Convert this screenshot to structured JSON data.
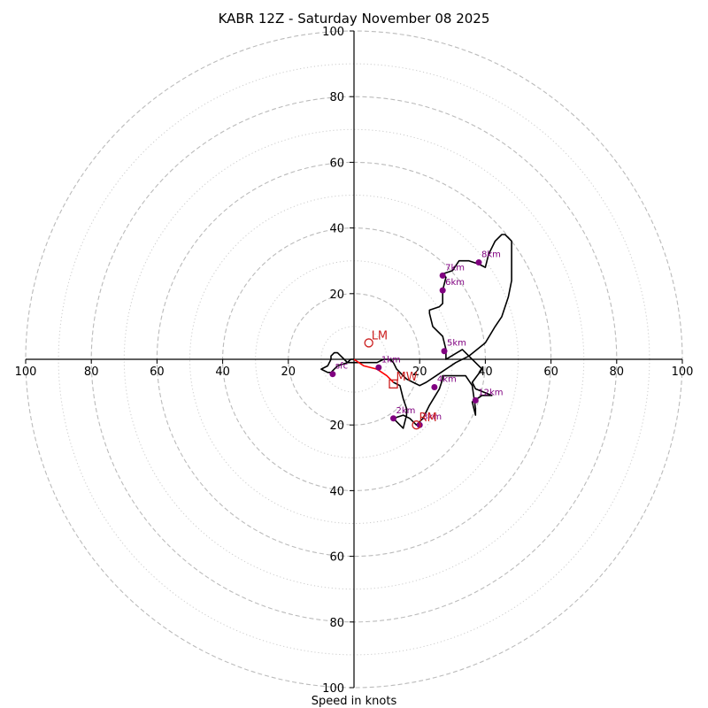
{
  "chart_data": {
    "type": "hodograph",
    "title": "KABR 12Z - Saturday November 08 2025",
    "xlabel": "Speed in knots",
    "speed_range": [
      0,
      100
    ],
    "ring_major": [
      20,
      40,
      60,
      80,
      100
    ],
    "ring_minor": [
      10,
      30,
      50,
      70,
      90
    ],
    "tick_labels": {
      "left": [
        "100",
        "80",
        "60",
        "40",
        "20"
      ],
      "right": [
        "20",
        "40",
        "60",
        "80",
        "100"
      ],
      "up": [
        "100",
        "80",
        "60",
        "40",
        "20"
      ],
      "down": [
        "20",
        "40",
        "60",
        "80",
        "100"
      ]
    },
    "low_level_trace": {
      "color": "#ff0000",
      "points": [
        [
          0,
          0
        ],
        [
          3,
          -2
        ],
        [
          7,
          -3
        ],
        [
          10,
          -5
        ],
        [
          12,
          -7
        ]
      ]
    },
    "trace": {
      "color": "#000000",
      "points": [
        [
          12,
          -7
        ],
        [
          14,
          -8
        ],
        [
          15,
          -12
        ],
        [
          16,
          -15
        ],
        [
          16,
          -17
        ],
        [
          15,
          -21
        ],
        [
          12,
          -18
        ],
        [
          15,
          -17
        ],
        [
          17,
          -18
        ],
        [
          19,
          -20
        ],
        [
          21,
          -18
        ],
        [
          23,
          -14
        ],
        [
          26,
          -9
        ],
        [
          27,
          -6
        ],
        [
          27,
          -5
        ],
        [
          34,
          -5
        ],
        [
          36,
          -8
        ],
        [
          37,
          -15
        ],
        [
          37,
          -17
        ],
        [
          36,
          -13
        ],
        [
          39,
          -11
        ],
        [
          42,
          -11
        ],
        [
          37,
          -9
        ],
        [
          36,
          -7
        ],
        [
          39,
          -3
        ],
        [
          37,
          -1
        ],
        [
          33,
          3
        ],
        [
          28,
          0
        ],
        [
          28,
          3
        ],
        [
          27,
          7
        ],
        [
          24,
          10
        ],
        [
          23,
          14
        ],
        [
          23,
          15
        ],
        [
          26,
          16
        ],
        [
          27,
          17
        ],
        [
          27,
          21
        ],
        [
          28,
          25
        ],
        [
          27,
          26
        ],
        [
          30,
          27
        ],
        [
          32,
          30
        ],
        [
          35,
          30
        ],
        [
          38,
          29
        ],
        [
          40,
          28
        ],
        [
          41,
          32
        ],
        [
          43,
          36
        ],
        [
          45,
          38
        ],
        [
          46,
          38
        ],
        [
          48,
          36
        ],
        [
          48,
          30
        ],
        [
          48,
          24
        ],
        [
          47,
          19
        ],
        [
          45,
          13
        ],
        [
          43,
          10
        ],
        [
          40,
          5
        ],
        [
          35,
          1
        ],
        [
          31,
          -1
        ],
        [
          28,
          -3
        ],
        [
          25,
          -5
        ],
        [
          22,
          -7
        ],
        [
          20,
          -8
        ],
        [
          18,
          -7
        ],
        [
          16,
          -6
        ],
        [
          15,
          -5
        ],
        [
          14,
          -4
        ],
        [
          13,
          -3
        ],
        [
          12,
          -1
        ],
        [
          11,
          0
        ],
        [
          9,
          0
        ],
        [
          7,
          -1
        ],
        [
          6,
          -1
        ],
        [
          5,
          -1
        ],
        [
          3,
          -1
        ],
        [
          1,
          -1
        ],
        [
          -2,
          -1
        ],
        [
          -5,
          -2
        ],
        [
          -7,
          -4
        ],
        [
          -8,
          -4
        ],
        [
          -10,
          -3
        ],
        [
          -8,
          -2
        ],
        [
          -7,
          0
        ],
        [
          -7,
          1
        ],
        [
          -6,
          2
        ],
        [
          -5,
          2
        ],
        [
          -4,
          1
        ],
        [
          -3,
          0
        ],
        [
          -2,
          -1
        ],
        [
          -1,
          0
        ],
        [
          0,
          0
        ]
      ]
    },
    "height_markers": [
      {
        "label": "sfc",
        "u": -6.5,
        "v": -4.5
      },
      {
        "label": "1km",
        "u": 7.5,
        "v": -2.5
      },
      {
        "label": "2km",
        "u": 12,
        "v": -18
      },
      {
        "label": "3km",
        "u": 20,
        "v": -20
      },
      {
        "label": "4km",
        "u": 24.5,
        "v": -8.5
      },
      {
        "label": "5km",
        "u": 27.5,
        "v": 2.5
      },
      {
        "label": "6km",
        "u": 27,
        "v": 21
      },
      {
        "label": "7km",
        "u": 27,
        "v": 25.5
      },
      {
        "label": "8km",
        "u": 38,
        "v": 29.5
      },
      {
        "label": "12km",
        "u": 37,
        "v": -12.5
      }
    ],
    "storm_motion": [
      {
        "label": "LM",
        "u": 4.5,
        "v": 5,
        "marker": "circle"
      },
      {
        "label": "RM",
        "u": 19,
        "v": -20,
        "marker": "circle"
      },
      {
        "label": "MW",
        "u": 12,
        "v": -7.5,
        "marker": "square"
      }
    ],
    "motion_color": "#cc1f1f",
    "height_color": "#800080",
    "ring_color": "#bbbbbb"
  }
}
